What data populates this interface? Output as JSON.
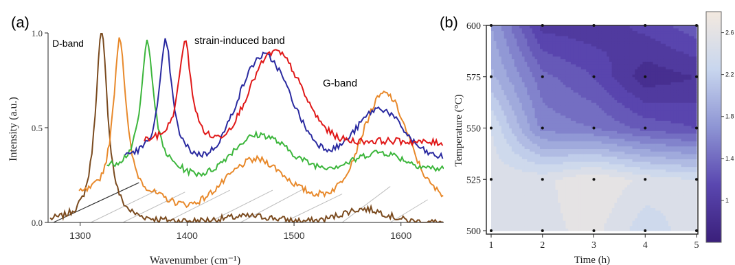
{
  "panel_a": {
    "label": "(a)",
    "annotations": {
      "d_band": "D-band",
      "strain_band": "strain-induced band",
      "g_band": "G-band"
    },
    "colors": {
      "brown": "#7a4a1e",
      "orange": "#e8892b",
      "green": "#3cb63c",
      "blue": "#2a2aa0",
      "red": "#e01818"
    }
  },
  "panel_b": {
    "label": "(b)"
  },
  "chart_data": [
    {
      "type": "line",
      "xlabel": "Wavenumber (cm⁻¹)",
      "ylabel": "Intensity (a.u.)",
      "xlim": [
        1270,
        1640
      ],
      "ylim": [
        0,
        1.0
      ],
      "x_ticks": [
        "1300",
        "1400",
        "1500",
        "1600"
      ],
      "y_ticks": [
        "0.0",
        "0.5",
        "1.0"
      ],
      "grid": false,
      "series": [
        {
          "color": "brown",
          "baseline": 0.0,
          "d_band": [
            1320,
            1.0
          ],
          "strain_band": [
            1460,
            0.03
          ],
          "g_band": [
            1565,
            0.07
          ]
        },
        {
          "color": "orange",
          "baseline": 0.13,
          "d_band": [
            1337,
            0.98
          ],
          "strain_band": [
            1465,
            0.33
          ],
          "g_band": [
            1585,
            0.68
          ]
        },
        {
          "color": "green",
          "baseline": 0.28,
          "d_band": [
            1363,
            0.96
          ],
          "strain_band": [
            1468,
            0.46
          ],
          "g_band": [
            1580,
            0.37
          ]
        },
        {
          "color": "blue",
          "baseline": 0.34,
          "d_band": [
            1380,
            0.96
          ],
          "strain_band": [
            1472,
            0.88
          ],
          "g_band": [
            1580,
            0.6
          ]
        },
        {
          "color": "red",
          "baseline": 0.42,
          "d_band": [
            1398,
            0.96
          ],
          "strain_band": [
            1482,
            0.9
          ],
          "g_band": [
            1585,
            0.43
          ]
        }
      ]
    },
    {
      "type": "heatmap",
      "subtype": "filled-contour",
      "xlabel": "Time (h)",
      "ylabel": "Temperature (°C)",
      "x": [
        1,
        2,
        3,
        4,
        5
      ],
      "y": [
        500,
        525,
        550,
        575,
        600
      ],
      "x_ticks": [
        "1",
        "2",
        "3",
        "4",
        "5"
      ],
      "y_ticks": [
        "500",
        "525",
        "550",
        "575",
        "600"
      ],
      "colorbar_ticks": [
        "1",
        "1.4",
        "1.8",
        "2.2",
        "2.6"
      ],
      "colorbar_range": [
        0.6,
        2.8
      ],
      "z": [
        [
          2.4,
          2.5,
          2.6,
          2.3,
          2.5
        ],
        [
          2.5,
          2.5,
          2.7,
          2.5,
          2.4
        ],
        [
          2.4,
          1.6,
          1.5,
          1.3,
          1.2
        ],
        [
          2.0,
          1.4,
          1.2,
          0.8,
          0.9
        ],
        [
          1.8,
          1.0,
          0.95,
          1.1,
          1.3
        ]
      ]
    }
  ]
}
